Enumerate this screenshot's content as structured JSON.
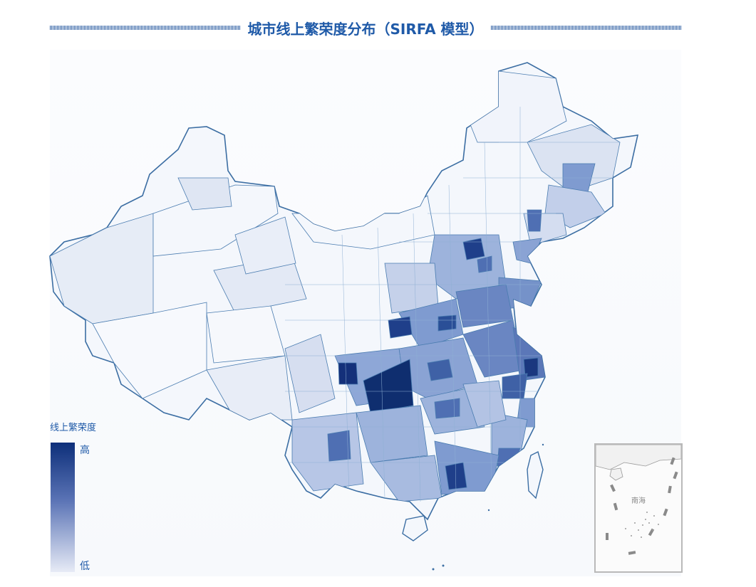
{
  "title": "城市线上繁荣度分布（SIRFA 模型）",
  "legend": {
    "title": "线上繁荣度",
    "high_label": "高",
    "low_label": "低",
    "colors": {
      "high": "#0d2f7a",
      "mid": "#5b74b6",
      "low": "#e7ebf6"
    }
  },
  "inset": {
    "label": "南海"
  },
  "colors": {
    "title": "#1f5aa8",
    "border": "#3c6ea3",
    "fill_scale": [
      "#f4f7fc",
      "#dfe6f3",
      "#c5d1ea",
      "#9db3dc",
      "#7592c9",
      "#4f6fb3",
      "#2a4f97",
      "#0f2e6f"
    ]
  }
}
